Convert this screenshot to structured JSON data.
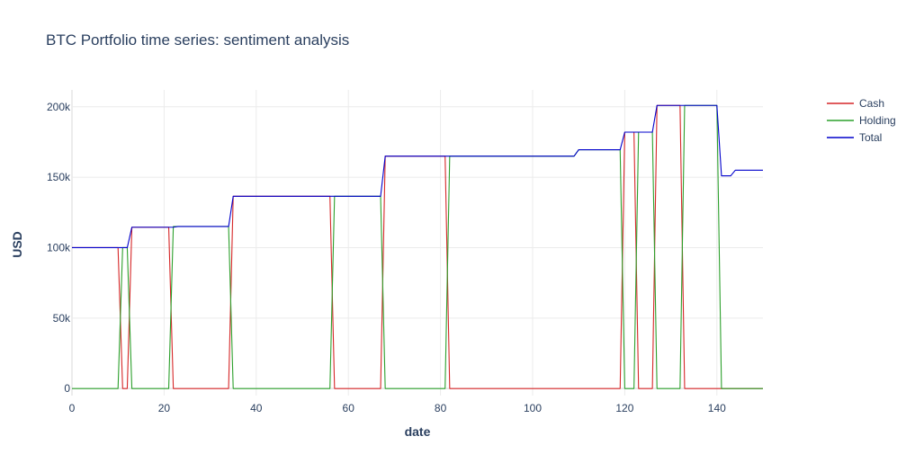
{
  "chart_data": {
    "type": "line",
    "title": "BTC Portfolio time series: sentiment analysis",
    "xlabel": "date",
    "ylabel": "USD",
    "xlim": [
      0,
      150
    ],
    "ylim": [
      -5000,
      212000
    ],
    "x_ticks": [
      0,
      20,
      40,
      60,
      80,
      100,
      120,
      140
    ],
    "x_tick_labels": [
      "0",
      "20",
      "40",
      "60",
      "80",
      "100",
      "120",
      "140"
    ],
    "y_ticks": [
      0,
      50000,
      100000,
      150000,
      200000
    ],
    "y_tick_labels": [
      "0",
      "50k",
      "100k",
      "150k",
      "200k"
    ],
    "grid": true,
    "legend_position": "top-right",
    "series": [
      {
        "name": "Cash",
        "color": "#d62728",
        "points": [
          [
            0,
            100000
          ],
          [
            10,
            100000
          ],
          [
            11,
            0
          ],
          [
            12,
            0
          ],
          [
            13,
            114500
          ],
          [
            21,
            114500
          ],
          [
            22,
            0
          ],
          [
            34,
            0
          ],
          [
            35,
            136500
          ],
          [
            56,
            136500
          ],
          [
            57,
            0
          ],
          [
            67,
            0
          ],
          [
            68,
            165000
          ],
          [
            81,
            165000
          ],
          [
            82,
            0
          ],
          [
            119,
            0
          ],
          [
            120,
            182000
          ],
          [
            122,
            182000
          ],
          [
            123,
            0
          ],
          [
            126,
            0
          ],
          [
            127,
            201000
          ],
          [
            132,
            201000
          ],
          [
            133,
            0
          ],
          [
            150,
            0
          ]
        ]
      },
      {
        "name": "Holding",
        "color": "#2ca02c",
        "points": [
          [
            0,
            0
          ],
          [
            10,
            0
          ],
          [
            11,
            100000
          ],
          [
            12,
            100000
          ],
          [
            13,
            0
          ],
          [
            21,
            0
          ],
          [
            22,
            115000
          ],
          [
            34,
            115000
          ],
          [
            35,
            0
          ],
          [
            56,
            0
          ],
          [
            57,
            136500
          ],
          [
            67,
            136500
          ],
          [
            68,
            0
          ],
          [
            81,
            0
          ],
          [
            82,
            165000
          ],
          [
            109,
            165000
          ],
          [
            110,
            169500
          ],
          [
            119,
            169500
          ],
          [
            120,
            0
          ],
          [
            122,
            0
          ],
          [
            123,
            182000
          ],
          [
            126,
            182000
          ],
          [
            127,
            0
          ],
          [
            132,
            0
          ],
          [
            133,
            201000
          ],
          [
            140,
            201000
          ],
          [
            141,
            0
          ],
          [
            150,
            0
          ]
        ]
      },
      {
        "name": "Total",
        "color": "#0000cc",
        "points": [
          [
            0,
            100000
          ],
          [
            12,
            100000
          ],
          [
            13,
            114500
          ],
          [
            22,
            114500
          ],
          [
            23,
            115000
          ],
          [
            34,
            115000
          ],
          [
            35,
            136500
          ],
          [
            67,
            136500
          ],
          [
            68,
            165000
          ],
          [
            109,
            165000
          ],
          [
            110,
            169500
          ],
          [
            119,
            169500
          ],
          [
            120,
            182000
          ],
          [
            126,
            182000
          ],
          [
            127,
            201000
          ],
          [
            140,
            201000
          ],
          [
            141,
            151000
          ],
          [
            143,
            151000
          ],
          [
            144,
            155000
          ],
          [
            150,
            155000
          ]
        ]
      }
    ]
  }
}
